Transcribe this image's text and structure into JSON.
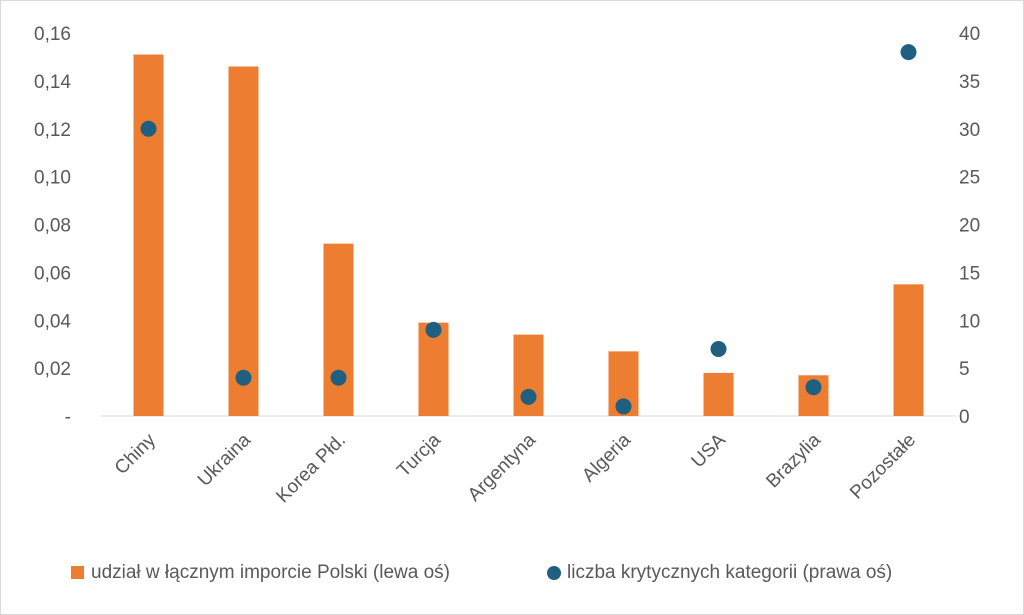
{
  "chart_data": {
    "type": "bar",
    "categories": [
      "Chiny",
      "Ukraina",
      "Korea Płd.",
      "Turcja",
      "Argentyna",
      "Algeria",
      "USA",
      "Brazylia",
      "Pozostałe"
    ],
    "series": [
      {
        "name": "udział w łącznym imporcie Polski (lewa oś)",
        "type": "bar",
        "axis": "left",
        "color": "#ED7D31",
        "values": [
          0.151,
          0.146,
          0.072,
          0.039,
          0.034,
          0.027,
          0.018,
          0.017,
          0.055
        ]
      },
      {
        "name": "liczba krytycznych kategorii (prawa oś)",
        "type": "scatter",
        "axis": "right",
        "color": "#1F5F7F",
        "values": [
          30,
          4,
          4,
          9,
          2,
          1,
          7,
          3,
          38
        ]
      }
    ],
    "y_left": {
      "range": [
        0,
        0.16
      ],
      "ticks": [
        0,
        0.02,
        0.04,
        0.06,
        0.08,
        0.1,
        0.12,
        0.14,
        0.16
      ],
      "tick_labels": [
        "-",
        "0,02",
        "0,04",
        "0,06",
        "0,08",
        "0,10",
        "0,12",
        "0,14",
        "0,16"
      ]
    },
    "y_right": {
      "range": [
        0,
        40
      ],
      "ticks": [
        0,
        5,
        10,
        15,
        20,
        25,
        30,
        35,
        40
      ],
      "tick_labels": [
        "0",
        "5",
        "10",
        "15",
        "20",
        "25",
        "30",
        "35",
        "40"
      ]
    },
    "grid": false,
    "legend_position": "bottom"
  }
}
